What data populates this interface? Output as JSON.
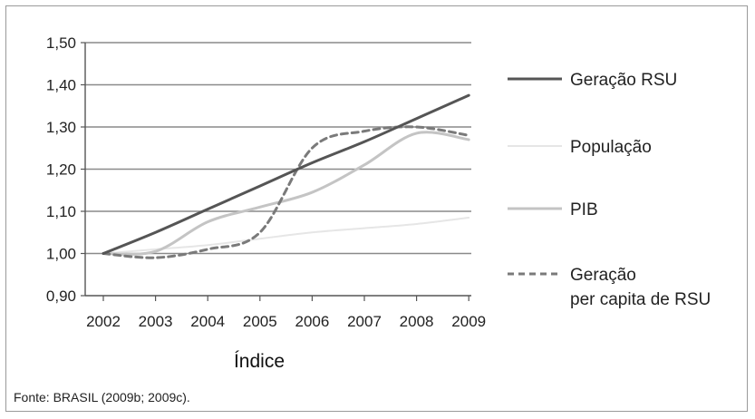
{
  "chart_data": {
    "type": "line",
    "title": "",
    "xlabel": "Índice",
    "ylabel": "",
    "ylim": [
      0.9,
      1.5
    ],
    "yticks": [
      "0,90",
      "1,00",
      "1,10",
      "1,20",
      "1,30",
      "1,40",
      "1,50"
    ],
    "x": [
      "2002",
      "2003",
      "2004",
      "2005",
      "2006",
      "2007",
      "2008",
      "2009"
    ],
    "grid": true,
    "legend_position": "right",
    "source": "Fonte: BRASIL (2009b; 2009c).",
    "series": [
      {
        "name": "Geração RSU",
        "values": [
          1.0,
          1.05,
          1.105,
          1.16,
          1.215,
          1.265,
          1.32,
          1.375
        ],
        "color": "#555555",
        "style": "solid",
        "width": 3
      },
      {
        "name": "População",
        "values": [
          1.0,
          1.01,
          1.02,
          1.035,
          1.05,
          1.06,
          1.07,
          1.085
        ],
        "color": "#e6e6e6",
        "style": "solid",
        "width": 2
      },
      {
        "name": "PIB",
        "values": [
          1.0,
          1.005,
          1.075,
          1.11,
          1.145,
          1.21,
          1.285,
          1.27
        ],
        "color": "#c4c4c4",
        "style": "solid",
        "width": 3
      },
      {
        "name": "Geração\nper capita de RSU",
        "values": [
          1.0,
          0.99,
          1.01,
          1.05,
          1.25,
          1.29,
          1.3,
          1.28
        ],
        "color": "#7a7a7a",
        "style": "dashed",
        "width": 3
      }
    ]
  }
}
